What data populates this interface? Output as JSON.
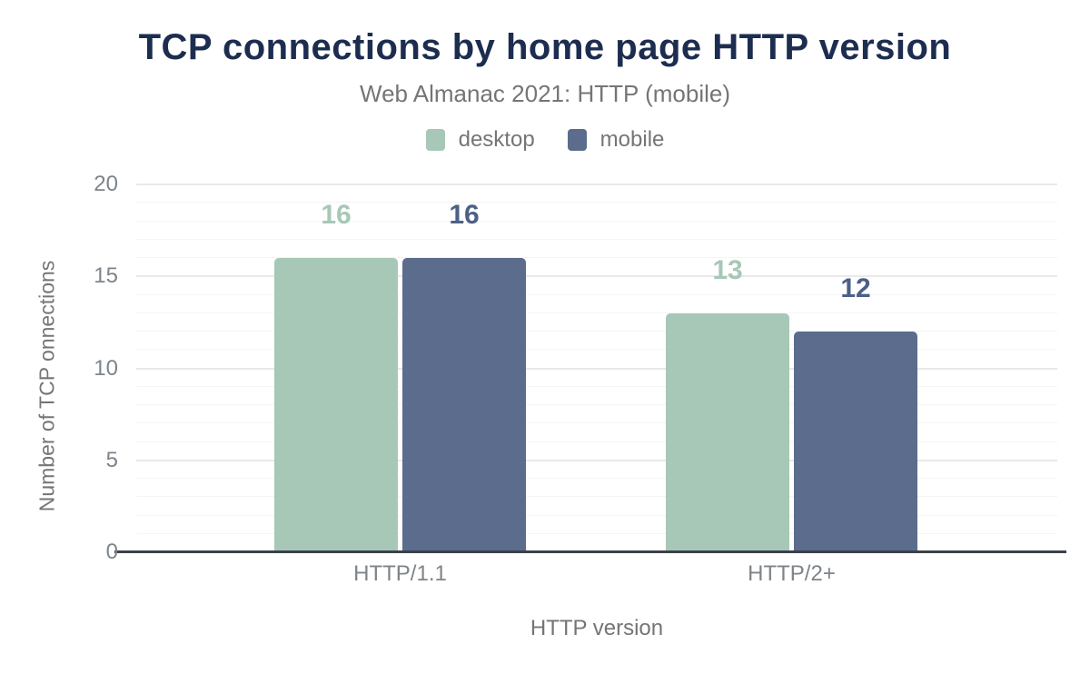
{
  "chart_data": {
    "type": "bar",
    "title": "TCP connections by home page HTTP version",
    "subtitle": "Web Almanac 2021: HTTP (mobile)",
    "xlabel": "HTTP version",
    "ylabel": "Number of TCP onnections",
    "categories": [
      "HTTP/1.1",
      "HTTP/2+"
    ],
    "series": [
      {
        "name": "desktop",
        "values": [
          16,
          13
        ],
        "color": "#a7c8b6",
        "label_color": "#a7c8b6"
      },
      {
        "name": "mobile",
        "values": [
          16,
          12
        ],
        "color": "#5b6c8d",
        "label_color": "#4d6086"
      }
    ],
    "ylim": [
      0,
      20
    ],
    "yticks": [
      0,
      5,
      10,
      15,
      20
    ],
    "grid": {
      "on": true,
      "minor_step": 1,
      "major_step": 5
    },
    "legend_position": "top"
  },
  "colors": {
    "background": "#ffffff",
    "title": "#1c2d4f",
    "subtitle": "#757575",
    "axis_title": "#757575",
    "tick_text": "#7d848a",
    "grid_minor": "#f4f4f4",
    "grid_major": "#e9e9e9",
    "axis_line": "#3b4149"
  }
}
